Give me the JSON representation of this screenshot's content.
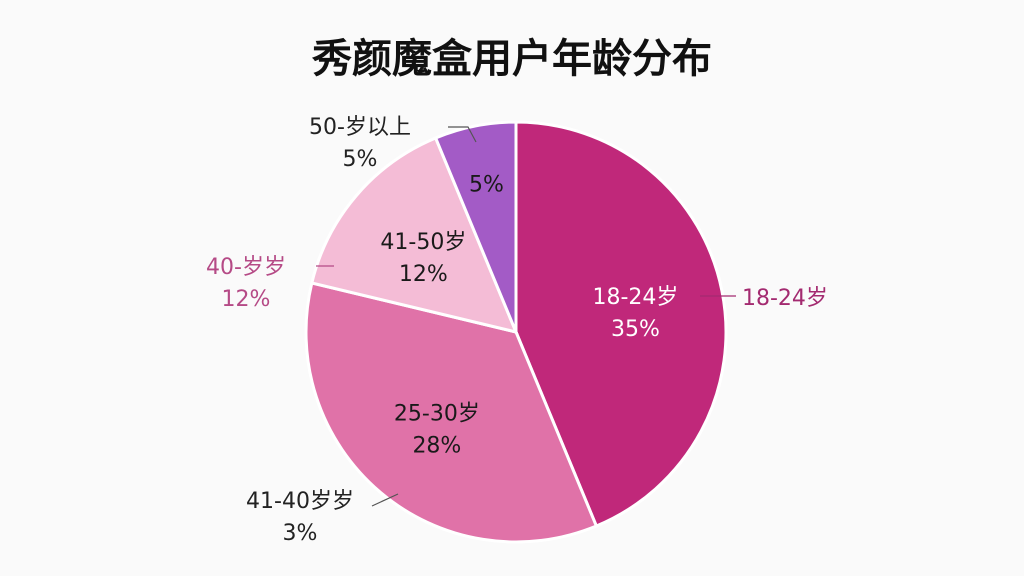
{
  "chart_data": {
    "type": "pie",
    "title": "秀颜魔盒用户年龄分布",
    "slices": [
      {
        "label": "18-24岁",
        "value": 35,
        "value_label": "35%",
        "color": "#c0287a",
        "text_on_dark": true
      },
      {
        "label": "25-30岁",
        "value": 28,
        "value_label": "28%",
        "color": "#e072a8",
        "text_on_dark": false
      },
      {
        "label": "41-50岁",
        "value": 12,
        "value_label": "12%",
        "color": "#f4bcd6",
        "text_on_dark": false
      },
      {
        "label": "50-岁以上",
        "value": 5,
        "value_label": "5%",
        "color": "#a35bc6",
        "text_on_dark": false
      }
    ],
    "callouts": [
      {
        "name": "callout-18-24",
        "line1": "18-24岁",
        "line2": "",
        "color": "#a32a70"
      },
      {
        "name": "callout-41-40",
        "line1": "41-40岁岁",
        "line2": "3%",
        "color": "#222222"
      },
      {
        "name": "callout-40",
        "line1": "40-岁岁",
        "line2": "12%",
        "color": "#b54a86"
      },
      {
        "name": "callout-50",
        "line1": "50-岁以上",
        "line2": "5%",
        "color": "#222222"
      }
    ]
  }
}
